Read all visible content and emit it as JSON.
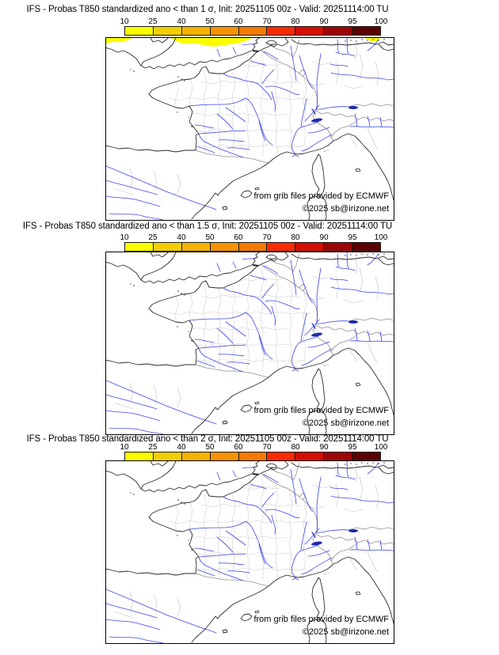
{
  "panels": [
    {
      "id": "sigma-1",
      "title": "IFS - Probas T850  standardized ano < than 1 σ, Init: 20251105 00z - Valid: 20251114:00 TU"
    },
    {
      "id": "sigma-1.5",
      "title": "IFS - Probas T850  standardized ano < than 1.5 σ, Init: 20251105 00z - Valid: 20251114:00 TU"
    },
    {
      "id": "sigma-2",
      "title": "IFS - Probas T850  standardized ano < than 2 σ, Init: 20251105 00z - Valid: 20251114:00 TU"
    }
  ],
  "colorbar": {
    "ticks": [
      "10",
      "25",
      "40",
      "50",
      "60",
      "70",
      "80",
      "90",
      "95",
      "100"
    ],
    "colors": [
      "#fcfc00",
      "#f2ce00",
      "#f5b200",
      "#f79200",
      "#f57a00",
      "#f92b00",
      "#d60e00",
      "#9e0505",
      "#5c0101"
    ]
  },
  "attribution": {
    "line1": "from grib files provided by ECMWF",
    "line2": "©2025 sb@irizone.net"
  },
  "map": {
    "anomaly_color": "#fcfc00",
    "river_color": "#3d46e8",
    "coast_color": "#2b2b2b",
    "border_color": "#909090",
    "department_color": "#cacaca"
  }
}
